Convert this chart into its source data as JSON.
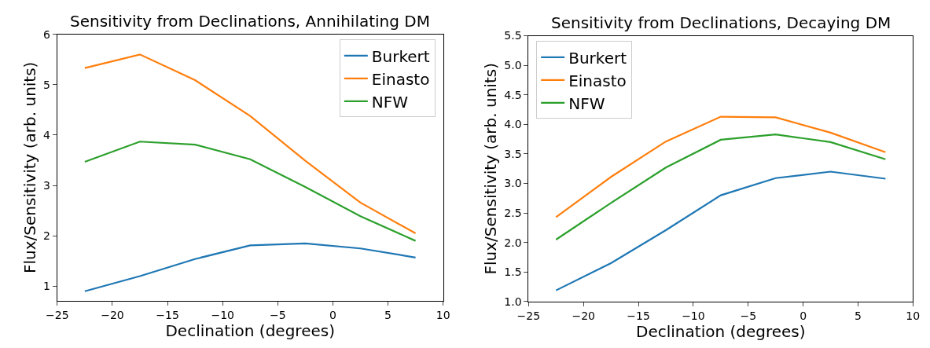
{
  "chart_data": [
    {
      "type": "line",
      "title": "Sensitivity from Declinations, Annihilating DM",
      "xlabel": "Declination (degrees)",
      "ylabel": "Flux/Sensitivity (arb. units)",
      "x": [
        -22.5,
        -17.5,
        -12.5,
        -7.5,
        -2.5,
        2.5,
        7.5
      ],
      "series": [
        {
          "name": "Burkert",
          "color": "#1f77b4",
          "values": [
            0.9,
            1.2,
            1.54,
            1.81,
            1.85,
            1.75,
            1.57
          ]
        },
        {
          "name": "Einasto",
          "color": "#ff7f0e",
          "values": [
            5.33,
            5.6,
            5.09,
            4.38,
            3.49,
            2.66,
            2.05
          ]
        },
        {
          "name": "NFW",
          "color": "#2ca02c",
          "values": [
            3.47,
            3.87,
            3.81,
            3.52,
            2.97,
            2.39,
            1.9
          ]
        }
      ],
      "xlim": [
        -25,
        10
      ],
      "xticks": [
        -25,
        -20,
        -15,
        -10,
        -5,
        0,
        5,
        10
      ],
      "ylim": [
        0.71,
        6
      ],
      "yticks": [
        1,
        2,
        3,
        4,
        5,
        6
      ],
      "legend": "top right"
    },
    {
      "type": "line",
      "title": "Sensitivity from Declinations, Decaying DM",
      "xlabel": "Declination (degrees)",
      "ylabel": "Flux/Sensitivity (arb. units)",
      "x": [
        -22.5,
        -17.5,
        -12.5,
        -7.5,
        -2.5,
        2.5,
        7.5
      ],
      "series": [
        {
          "name": "Burkert",
          "color": "#1f77b4",
          "values": [
            1.19,
            1.65,
            2.21,
            2.8,
            3.09,
            3.2,
            3.08
          ]
        },
        {
          "name": "Einasto",
          "color": "#ff7f0e",
          "values": [
            2.43,
            3.11,
            3.71,
            4.13,
            4.12,
            3.86,
            3.53
          ]
        },
        {
          "name": "NFW",
          "color": "#2ca02c",
          "values": [
            2.05,
            2.67,
            3.27,
            3.74,
            3.83,
            3.7,
            3.41
          ]
        }
      ],
      "xlim": [
        -25,
        10
      ],
      "xticks": [
        -25,
        -20,
        -15,
        -10,
        -5,
        0,
        5,
        10
      ],
      "ylim": [
        1.0,
        5.5
      ],
      "yticks": [
        {
          "value": 1.0,
          "label": "1.0"
        },
        {
          "value": 1.5,
          "label": "1.5"
        },
        {
          "value": 2.0,
          "label": "2.0"
        },
        {
          "value": 2.5,
          "label": "2.5"
        },
        {
          "value": 3.0,
          "label": "3.0"
        },
        {
          "value": 3.5,
          "label": "3.5"
        },
        {
          "value": 4.0,
          "label": "4.0"
        },
        {
          "value": 4.5,
          "label": "4.5"
        },
        {
          "value": 5.0,
          "label": "5.0"
        },
        {
          "value": 5.5,
          "label": "5.5"
        }
      ],
      "legend": "top left"
    }
  ]
}
